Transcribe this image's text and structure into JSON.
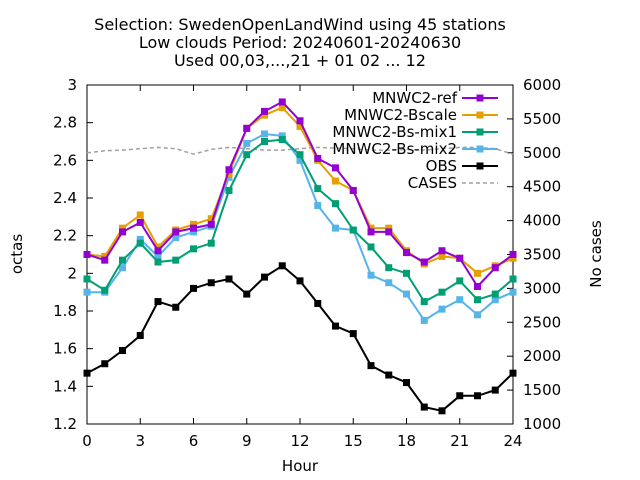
{
  "title_lines": [
    "Selection: SwedenOpenLandWind using    45 stations",
    "Low clouds   Period: 20240601-20240630",
    "Used 00,03,...,21 + 01 02 ... 12"
  ],
  "chart_data": {
    "type": "line",
    "xlabel": "Hour",
    "ylabel": "octas",
    "y2label": "No cases",
    "xlim": [
      0,
      24
    ],
    "ylim": [
      1.2,
      3.0
    ],
    "y2lim": [
      1000,
      6000
    ],
    "xticks": [
      "0",
      "3",
      "6",
      "9",
      "12",
      "15",
      "18",
      "21",
      "24"
    ],
    "yticks": [
      "1.2",
      "1.4",
      "1.6",
      "1.8",
      "2",
      "2.2",
      "2.4",
      "2.6",
      "2.8",
      "3"
    ],
    "y2ticks": [
      "1000",
      "1500",
      "2000",
      "2500",
      "3000",
      "3500",
      "4000",
      "4500",
      "5000",
      "5500",
      "6000"
    ],
    "legend_position": "top-right",
    "grid": false,
    "x": [
      0,
      1,
      2,
      3,
      4,
      5,
      6,
      7,
      8,
      9,
      10,
      11,
      12,
      13,
      14,
      15,
      16,
      17,
      18,
      19,
      20,
      21,
      22,
      23,
      24
    ],
    "series": [
      {
        "name": "MNWC2-ref",
        "color": "#9400d3",
        "marker": "filled-square",
        "axis": "y1",
        "values": [
          2.1,
          2.07,
          2.22,
          2.27,
          2.12,
          2.22,
          2.24,
          2.26,
          2.55,
          2.77,
          2.86,
          2.91,
          2.81,
          2.61,
          2.56,
          2.44,
          2.22,
          2.22,
          2.11,
          2.06,
          2.12,
          2.08,
          1.93,
          2.03,
          2.1
        ]
      },
      {
        "name": "MNWC2-Bscale",
        "color": "#e69f00",
        "marker": "filled-square",
        "axis": "y1",
        "values": [
          2.1,
          2.09,
          2.24,
          2.31,
          2.14,
          2.23,
          2.26,
          2.29,
          2.53,
          2.77,
          2.84,
          2.88,
          2.78,
          2.6,
          2.49,
          2.44,
          2.24,
          2.24,
          2.12,
          2.05,
          2.09,
          2.08,
          2.0,
          2.04,
          2.08
        ]
      },
      {
        "name": "MNWC2-Bs-mix1",
        "color": "#009e73",
        "marker": "filled-square",
        "axis": "y1",
        "values": [
          1.97,
          1.91,
          2.07,
          2.16,
          2.06,
          2.07,
          2.13,
          2.16,
          2.44,
          2.63,
          2.7,
          2.71,
          2.63,
          2.45,
          2.37,
          2.23,
          2.14,
          2.03,
          2.0,
          1.85,
          1.9,
          1.96,
          1.86,
          1.89,
          1.97
        ]
      },
      {
        "name": "MNWC2-Bs-mix2",
        "color": "#56b4e9",
        "marker": "filled-square",
        "axis": "y1",
        "values": [
          1.9,
          1.9,
          2.03,
          2.18,
          2.09,
          2.19,
          2.22,
          2.25,
          2.51,
          2.69,
          2.74,
          2.73,
          2.6,
          2.36,
          2.24,
          2.23,
          1.99,
          1.95,
          1.89,
          1.75,
          1.81,
          1.86,
          1.78,
          1.86,
          1.9
        ]
      },
      {
        "name": "OBS",
        "color": "#000000",
        "marker": "filled-square",
        "axis": "y1",
        "values": [
          1.47,
          1.52,
          1.59,
          1.67,
          1.85,
          1.82,
          1.92,
          1.95,
          1.97,
          1.89,
          1.98,
          2.04,
          1.96,
          1.84,
          1.72,
          1.68,
          1.51,
          1.46,
          1.42,
          1.29,
          1.27,
          1.35,
          1.35,
          1.38,
          1.47
        ]
      },
      {
        "name": "CASES",
        "color": "#a0a0a0",
        "marker": "none",
        "dashed": true,
        "axis": "y2",
        "values": [
          5000,
          5030,
          5040,
          5060,
          5080,
          5060,
          4980,
          5050,
          5080,
          5060,
          5040,
          5040,
          5060,
          5080,
          5070,
          5060,
          5040,
          5040,
          5050,
          5040,
          5060,
          5080,
          5080,
          5060,
          4980
        ]
      }
    ]
  }
}
